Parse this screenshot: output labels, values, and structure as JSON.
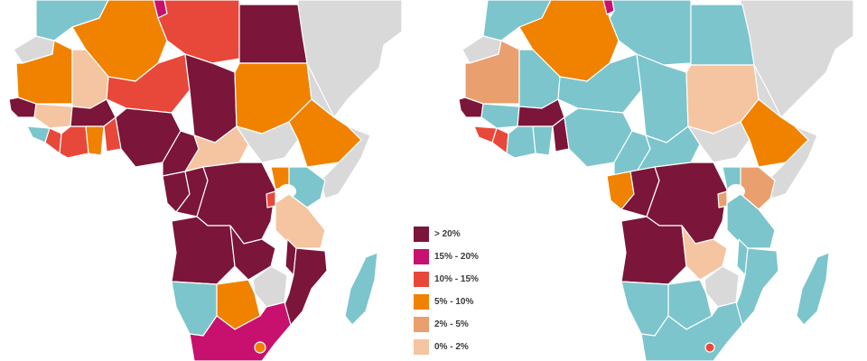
{
  "colors": {
    "gt20": "#7b1539",
    "c15_20": "#c8106e",
    "c10_15": "#e8483a",
    "c5_10": "#f08200",
    "c2_5": "#ea9f6e",
    "c0_2": "#f4c5a0",
    "low": "#7cc5cc",
    "nodata": "#d9d9d9"
  },
  "legend": {
    "items": [
      {
        "label": "> 20%",
        "color": "#7b1539"
      },
      {
        "label": "15% - 20%",
        "color": "#c8106e"
      },
      {
        "label": "10% - 15%",
        "color": "#e8483a"
      },
      {
        "label": "5% - 10%",
        "color": "#f08200"
      },
      {
        "label": "2% - 5%",
        "color": "#ea9f6e"
      },
      {
        "label": "0% - 2%",
        "color": "#f4c5a0"
      }
    ]
  }
}
